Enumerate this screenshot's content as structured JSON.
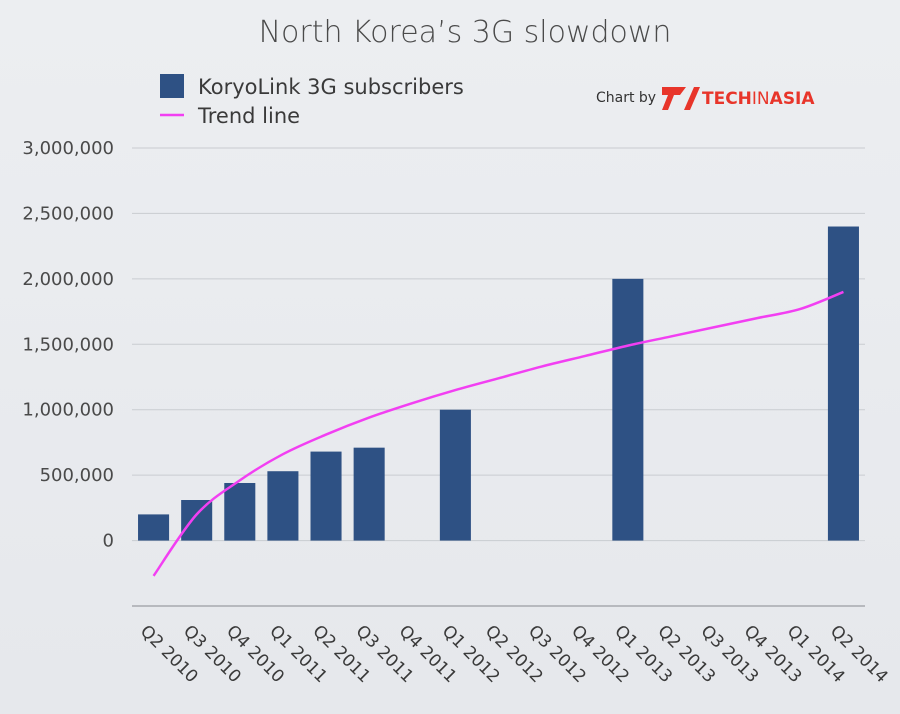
{
  "chart_data": {
    "type": "bar",
    "title": "North Korea’s 3G slowdown",
    "categories": [
      "Q2 2010",
      "Q3 2010",
      "Q4 2010",
      "Q1 2011",
      "Q2 2011",
      "Q3 2011",
      "Q4 2011",
      "Q1 2012",
      "Q2 2012",
      "Q3 2012",
      "Q4 2012",
      "Q1 2013",
      "Q2 2013",
      "Q3 2013",
      "Q4 2013",
      "Q1 2014",
      "Q2 2014"
    ],
    "series": [
      {
        "name": "KoryoLink 3G subscribers",
        "type": "bar",
        "color": "#2e5184",
        "values": [
          200000,
          310000,
          440000,
          530000,
          680000,
          710000,
          null,
          1000000,
          null,
          null,
          null,
          2000000,
          null,
          null,
          null,
          null,
          2400000
        ]
      },
      {
        "name": "Trend line",
        "type": "line",
        "color": "#f23ff2",
        "values": [
          -270000,
          200000,
          460000,
          660000,
          810000,
          940000,
          1050000,
          1150000,
          1240000,
          1330000,
          1410000,
          1490000,
          1560000,
          1630000,
          1700000,
          1770000,
          1900000
        ]
      }
    ],
    "yticks": [
      "3,000,000",
      "2,500,000",
      "2,000,000",
      "1,500,000",
      "1,000,000",
      "500,000",
      "0"
    ],
    "ylim": [
      -500000,
      3000000
    ],
    "ytick_values": [
      3000000,
      2500000,
      2000000,
      1500000,
      1000000,
      500000,
      0
    ],
    "grid": true,
    "legend_position": "top-left",
    "xlabel": "",
    "ylabel": ""
  },
  "credit": {
    "prefix": "Chart by",
    "brand_main": "TECH",
    "brand_mid": "IN",
    "brand_end": "ASIA"
  }
}
